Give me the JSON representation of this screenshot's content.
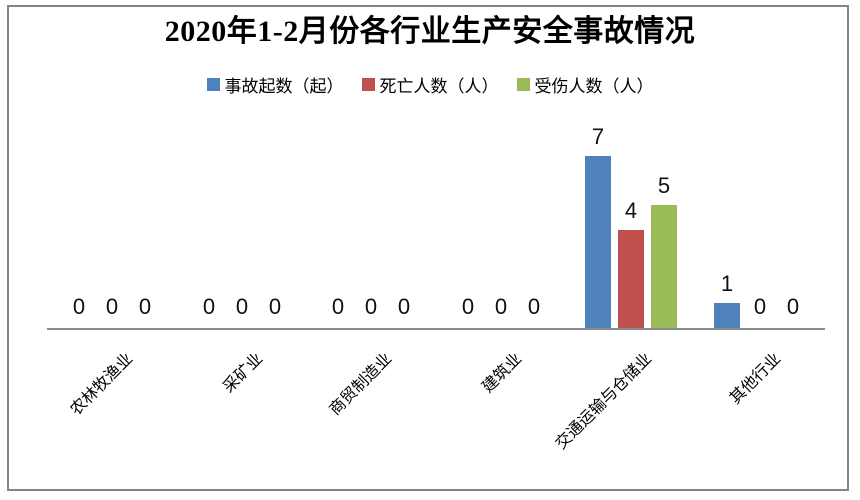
{
  "colors": {
    "frame_border": "#848484",
    "axis_line": "#8c8c8c",
    "label_text": "#111111"
  },
  "chart_data": {
    "type": "bar",
    "title": "2020年1-2月份各行业生产安全事故情况",
    "categories": [
      "农林牧渔业",
      "采矿业",
      "商贸制造业",
      "建筑业",
      "交通运输与仓储业",
      "其他行业"
    ],
    "series": [
      {
        "name": "事故起数（起）",
        "color": "#4F81BD",
        "values": [
          0,
          0,
          0,
          0,
          7,
          1
        ]
      },
      {
        "name": "死亡人数（人）",
        "color": "#C0504D",
        "values": [
          0,
          0,
          0,
          0,
          4,
          0
        ]
      },
      {
        "name": "受伤人数（人）",
        "color": "#9BBB59",
        "values": [
          0,
          0,
          0,
          0,
          5,
          0
        ]
      }
    ],
    "data_labels": true,
    "legend_position": "top-center",
    "xlabel": "",
    "ylabel": "",
    "ylim": [
      0,
      7
    ],
    "grid": false,
    "y_axis_visible": false
  }
}
